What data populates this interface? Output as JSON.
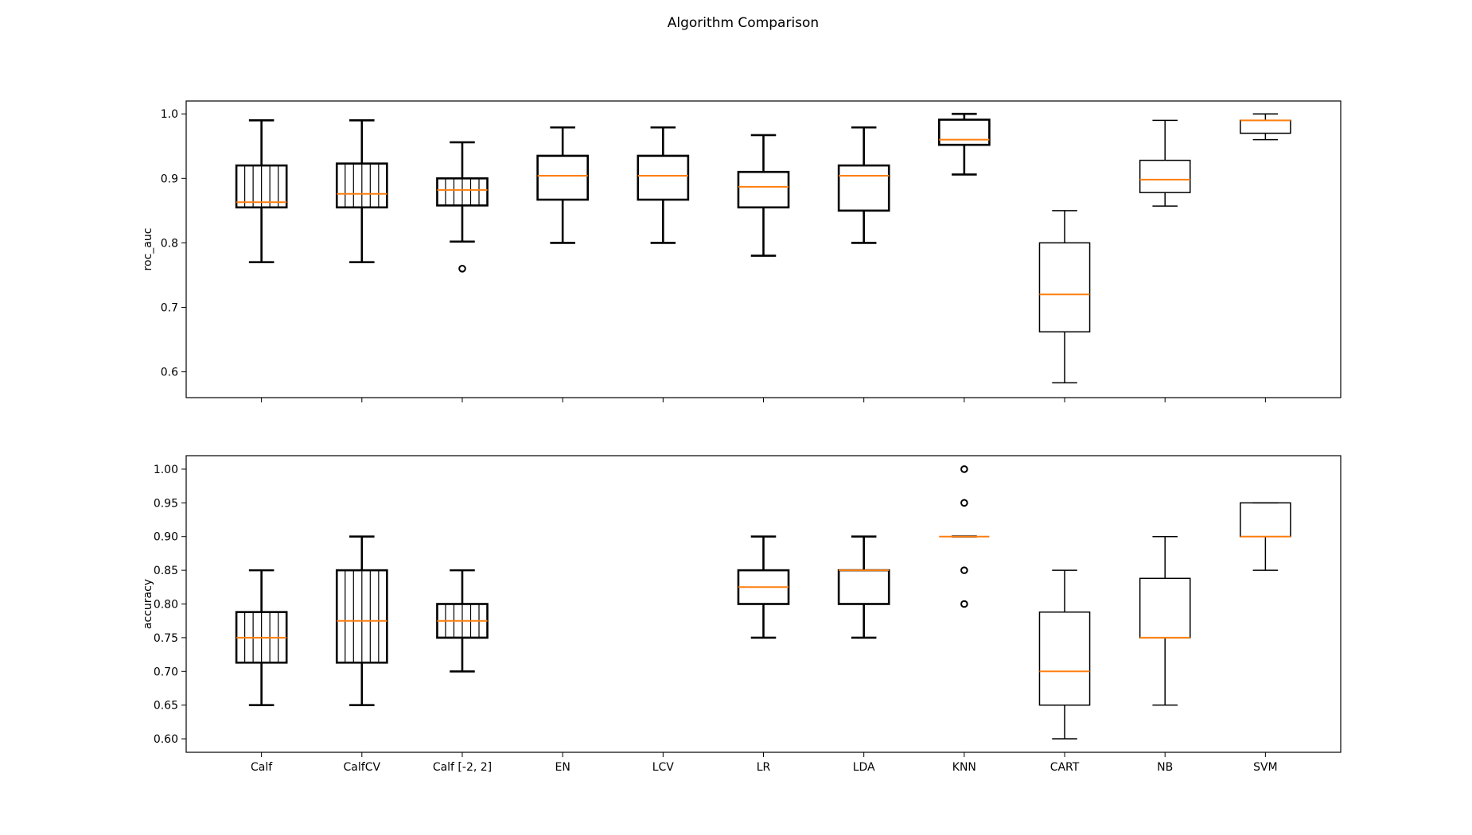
{
  "figure": {
    "title": "Algorithm Comparison"
  },
  "style": {
    "box_color": "#000000",
    "median_color": "#ff7f0e",
    "axis_color": "#000000",
    "background": "#ffffff"
  },
  "chart_data": [
    {
      "type": "box",
      "ylabel": "roc_auc",
      "xlabel": "",
      "ylim": [
        0.56,
        1.02
      ],
      "yticks": [
        0.6,
        0.7,
        0.8,
        0.9,
        1.0
      ],
      "ytick_labels": [
        "0.6",
        "0.7",
        "0.8",
        "0.9",
        "1.0"
      ],
      "show_xtick_labels": false,
      "categories": [
        "Calf",
        "CalfCV",
        "Calf [-2, 2]",
        "EN",
        "LCV",
        "LR",
        "LDA",
        "KNN",
        "CART",
        "NB",
        "SVM"
      ],
      "boxes": [
        {
          "whislo": 0.77,
          "q1": 0.855,
          "med": 0.863,
          "q3": 0.92,
          "whishi": 0.99,
          "fliers": [],
          "bold": true,
          "hatch": true
        },
        {
          "whislo": 0.77,
          "q1": 0.855,
          "med": 0.876,
          "q3": 0.923,
          "whishi": 0.99,
          "fliers": [],
          "bold": true,
          "hatch": true
        },
        {
          "whislo": 0.802,
          "q1": 0.858,
          "med": 0.882,
          "q3": 0.9,
          "whishi": 0.956,
          "fliers": [
            0.76
          ],
          "bold": true,
          "hatch": true
        },
        {
          "whislo": 0.8,
          "q1": 0.867,
          "med": 0.904,
          "q3": 0.935,
          "whishi": 0.979,
          "fliers": [],
          "bold": true,
          "hatch": false
        },
        {
          "whislo": 0.8,
          "q1": 0.867,
          "med": 0.904,
          "q3": 0.935,
          "whishi": 0.979,
          "fliers": [],
          "bold": true,
          "hatch": false
        },
        {
          "whislo": 0.78,
          "q1": 0.855,
          "med": 0.887,
          "q3": 0.91,
          "whishi": 0.967,
          "fliers": [],
          "bold": true,
          "hatch": false
        },
        {
          "whislo": 0.8,
          "q1": 0.85,
          "med": 0.904,
          "q3": 0.92,
          "whishi": 0.979,
          "fliers": [],
          "bold": true,
          "hatch": false
        },
        {
          "whislo": 0.906,
          "q1": 0.952,
          "med": 0.96,
          "q3": 0.991,
          "whishi": 1.0,
          "fliers": [],
          "bold": true,
          "hatch": false
        },
        {
          "whislo": 0.583,
          "q1": 0.662,
          "med": 0.72,
          "q3": 0.8,
          "whishi": 0.85,
          "fliers": [],
          "bold": false,
          "hatch": false
        },
        {
          "whislo": 0.857,
          "q1": 0.878,
          "med": 0.898,
          "q3": 0.928,
          "whishi": 0.99,
          "fliers": [],
          "bold": false,
          "hatch": false
        },
        {
          "whislo": 0.96,
          "q1": 0.97,
          "med": 0.99,
          "q3": 0.99,
          "whishi": 1.0,
          "fliers": [],
          "bold": false,
          "hatch": false
        }
      ]
    },
    {
      "type": "box",
      "ylabel": "accuracy",
      "xlabel": "",
      "ylim": [
        0.58,
        1.02
      ],
      "yticks": [
        0.6,
        0.65,
        0.7,
        0.75,
        0.8,
        0.85,
        0.9,
        0.95,
        1.0
      ],
      "ytick_labels": [
        "0.60",
        "0.65",
        "0.70",
        "0.75",
        "0.80",
        "0.85",
        "0.90",
        "0.95",
        "1.00"
      ],
      "show_xtick_labels": true,
      "categories": [
        "Calf",
        "CalfCV",
        "Calf [-2, 2]",
        "EN",
        "LCV",
        "LR",
        "LDA",
        "KNN",
        "CART",
        "NB",
        "SVM"
      ],
      "boxes": [
        {
          "whislo": 0.65,
          "q1": 0.713,
          "med": 0.75,
          "q3": 0.788,
          "whishi": 0.85,
          "fliers": [],
          "bold": true,
          "hatch": true
        },
        {
          "whislo": 0.65,
          "q1": 0.713,
          "med": 0.775,
          "q3": 0.85,
          "whishi": 0.9,
          "fliers": [],
          "bold": true,
          "hatch": true
        },
        {
          "whislo": 0.7,
          "q1": 0.75,
          "med": 0.775,
          "q3": 0.8,
          "whishi": 0.85,
          "fliers": [],
          "bold": true,
          "hatch": true
        },
        null,
        null,
        {
          "whislo": 0.75,
          "q1": 0.8,
          "med": 0.825,
          "q3": 0.85,
          "whishi": 0.9,
          "fliers": [],
          "bold": true,
          "hatch": false
        },
        {
          "whislo": 0.75,
          "q1": 0.8,
          "med": 0.85,
          "q3": 0.85,
          "whishi": 0.9,
          "fliers": [],
          "bold": true,
          "hatch": false
        },
        {
          "whislo": 0.9,
          "q1": 0.9,
          "med": 0.9,
          "q3": 0.9,
          "whishi": 0.9,
          "fliers": [
            1.0,
            0.95,
            0.85,
            0.8
          ],
          "bold": true,
          "hatch": false
        },
        {
          "whislo": 0.6,
          "q1": 0.65,
          "med": 0.7,
          "q3": 0.788,
          "whishi": 0.85,
          "fliers": [],
          "bold": false,
          "hatch": false
        },
        {
          "whislo": 0.65,
          "q1": 0.75,
          "med": 0.75,
          "q3": 0.838,
          "whishi": 0.9,
          "fliers": [],
          "bold": false,
          "hatch": false
        },
        {
          "whislo": 0.85,
          "q1": 0.9,
          "med": 0.9,
          "q3": 0.95,
          "whishi": 0.95,
          "fliers": [],
          "bold": false,
          "hatch": false
        }
      ]
    }
  ]
}
